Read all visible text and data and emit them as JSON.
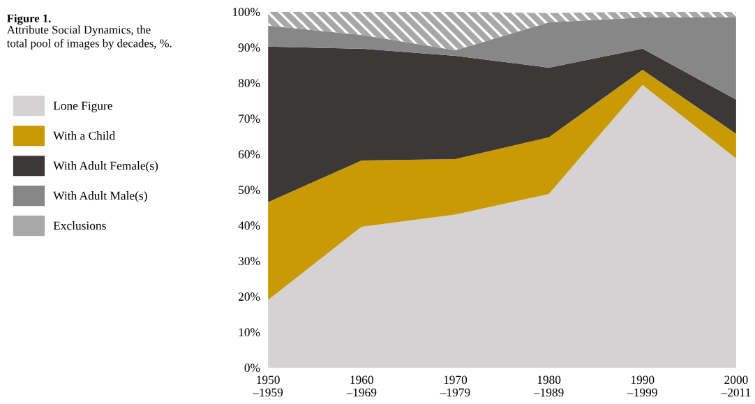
{
  "chart_data": {
    "type": "area",
    "stacked": true,
    "title": "Figure 1.",
    "subtitle": "Attribute Social Dynamics, the\ntotal pool of images by decades, %.",
    "categories": [
      "1950\n–1959",
      "1960\n–1969",
      "1970\n–1979",
      "1980\n–1989",
      "1990\n–1999",
      "2000\n–2011"
    ],
    "ylim": [
      0,
      100
    ],
    "yticks": [
      {
        "value": 0,
        "label": "0%"
      },
      {
        "value": 10,
        "label": "10%"
      },
      {
        "value": 20,
        "label": "20%"
      },
      {
        "value": 30,
        "label": "30%"
      },
      {
        "value": 40,
        "label": "40%"
      },
      {
        "value": 50,
        "label": "50%"
      },
      {
        "value": 60,
        "label": "60%"
      },
      {
        "value": 70,
        "label": "70%"
      },
      {
        "value": 80,
        "label": "80%"
      },
      {
        "value": 90,
        "label": "90%"
      },
      {
        "value": 100,
        "label": "100%"
      }
    ],
    "series": [
      {
        "name": "Lone Figure",
        "color": "#d5d2d3",
        "values": [
          19,
          39.6,
          43,
          48.8,
          79.4,
          58.8
        ]
      },
      {
        "name": "With a Child",
        "color": "#c99a04",
        "values": [
          27.5,
          18.6,
          15.6,
          15.9,
          4.3,
          6.9
        ]
      },
      {
        "name": "With Adult Female(s)",
        "color": "#3b3837",
        "values": [
          43.7,
          31.4,
          29,
          19.6,
          5.9,
          9.6
        ]
      },
      {
        "name": "With Adult Male(s)",
        "color": "#878787",
        "values": [
          5.9,
          3.9,
          1.6,
          12.7,
          8.8,
          23.1
        ]
      },
      {
        "name": "Exclusions",
        "color": "#a8a8a8",
        "values": [
          3.9,
          6.5,
          10.8,
          2.6,
          1.6,
          1.6
        ]
      }
    ],
    "legend": "left",
    "grid": false
  }
}
